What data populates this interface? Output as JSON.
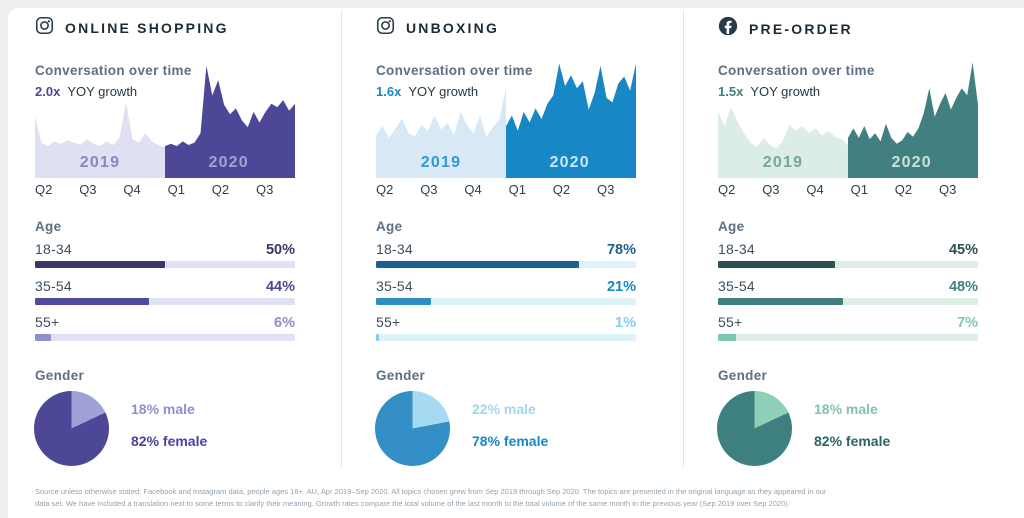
{
  "columns": [
    {
      "title": "ONLINE SHOPPING",
      "platform_icon": "instagram",
      "section_title": "Conversation over time",
      "yoy_label": "YOY growth",
      "accent_color": "#4c4897",
      "age_heading": "Age",
      "age_rows": [
        {
          "label": "18-34",
          "value": "50%"
        },
        {
          "label": "35-54",
          "value": "44%"
        },
        {
          "label": "55+",
          "value": "6%"
        }
      ],
      "gender_heading": "Gender",
      "male_label": "18% male",
      "female_label": "82% female"
    },
    {
      "title": "UNBOXING",
      "platform_icon": "instagram",
      "section_title": "Conversation over time",
      "yoy_label": "YOY growth",
      "accent_color": "#1787c5",
      "age_heading": "Age",
      "age_rows": [
        {
          "label": "18-34",
          "value": "78%"
        },
        {
          "label": "35-54",
          "value": "21%"
        },
        {
          "label": "55+",
          "value": "1%"
        }
      ],
      "gender_heading": "Gender",
      "male_label": "22% male",
      "female_label": "78% female"
    },
    {
      "title": "PRE-ORDER",
      "platform_icon": "facebook",
      "section_title": "Conversation over time",
      "yoy_label": "YOY growth",
      "accent_color": "#417f80",
      "age_heading": "Age",
      "age_rows": [
        {
          "label": "18-34",
          "value": "45%"
        },
        {
          "label": "35-54",
          "value": "48%"
        },
        {
          "label": "55+",
          "value": "7%"
        }
      ],
      "gender_heading": "Gender",
      "male_label": "18% male",
      "female_label": "82% female"
    }
  ],
  "chart_data": [
    {
      "topic": "ONLINE SHOPPING",
      "area": {
        "type": "area",
        "title": "Conversation over time",
        "yoy_growth": "2.0x",
        "x_labels": [
          "Q2",
          "Q3",
          "Q4",
          "Q1",
          "Q2",
          "Q3"
        ],
        "scale": "normalized conversation volume 0-1 (no y-axis shown)",
        "series": [
          {
            "name": "2019",
            "color": "#dfe1f3",
            "label_color": "#8987c6",
            "values": [
              0.52,
              0.3,
              0.27,
              0.31,
              0.29,
              0.32,
              0.3,
              0.28,
              0.33,
              0.29,
              0.27,
              0.31,
              0.28,
              0.34,
              0.64,
              0.33,
              0.3,
              0.38,
              0.31,
              0.28,
              0.26
            ]
          },
          {
            "name": "2020",
            "color": "#4c4897",
            "label_color": "#a3a1d4",
            "values": [
              0.27,
              0.29,
              0.27,
              0.31,
              0.28,
              0.3,
              0.38,
              0.95,
              0.7,
              0.83,
              0.62,
              0.54,
              0.59,
              0.49,
              0.43,
              0.56,
              0.47,
              0.56,
              0.63,
              0.6,
              0.66,
              0.57,
              0.63
            ]
          }
        ]
      },
      "age_bars": {
        "type": "bar",
        "categories": [
          "18-34",
          "35-54",
          "55+"
        ],
        "values": [
          50,
          44,
          6
        ],
        "unit": "%",
        "bar_colors": [
          "#393669",
          "#504c9c",
          "#8f8dcb"
        ],
        "value_colors": [
          "#393669",
          "#4c4897",
          "#8f8dcb"
        ],
        "track_color": "#e0e2f4"
      },
      "gender_pie": {
        "type": "pie",
        "labels": [
          "male",
          "female"
        ],
        "values": [
          18,
          82
        ],
        "colors": [
          "#a0a1d6",
          "#4c4897"
        ],
        "text_colors": [
          "#8d90d0",
          "#4843a0"
        ]
      }
    },
    {
      "topic": "UNBOXING",
      "area": {
        "type": "area",
        "title": "Conversation over time",
        "yoy_growth": "1.6x",
        "x_labels": [
          "Q2",
          "Q3",
          "Q4",
          "Q1",
          "Q2",
          "Q3"
        ],
        "scale": "normalized conversation volume 0-1 (no y-axis shown)",
        "series": [
          {
            "name": "2019",
            "color": "#d8e9f5",
            "label_color": "#2e9ad8",
            "values": [
              0.36,
              0.44,
              0.34,
              0.42,
              0.5,
              0.38,
              0.35,
              0.45,
              0.4,
              0.53,
              0.41,
              0.47,
              0.36,
              0.56,
              0.45,
              0.38,
              0.53,
              0.35,
              0.43,
              0.5,
              0.76
            ]
          },
          {
            "name": "2020",
            "color": "#1787c5",
            "label_color": "#c9e6f6",
            "values": [
              0.44,
              0.53,
              0.4,
              0.56,
              0.47,
              0.59,
              0.5,
              0.63,
              0.7,
              0.97,
              0.78,
              0.87,
              0.76,
              0.82,
              0.58,
              0.72,
              0.95,
              0.68,
              0.64,
              0.8,
              0.86,
              0.74,
              0.97
            ]
          }
        ]
      },
      "age_bars": {
        "type": "bar",
        "categories": [
          "18-34",
          "35-54",
          "55+"
        ],
        "values": [
          78,
          21,
          1
        ],
        "unit": "%",
        "bar_colors": [
          "#1d5f8f",
          "#2e8fc4",
          "#7fd0ee"
        ],
        "value_colors": [
          "#1d5f8f",
          "#1787c5",
          "#7fd0ee"
        ],
        "track_color": "#def2f9"
      },
      "gender_pie": {
        "type": "pie",
        "labels": [
          "male",
          "female"
        ],
        "values": [
          22,
          78
        ],
        "colors": [
          "#a6d9f2",
          "#338fc6"
        ],
        "text_colors": [
          "#a2d6f0",
          "#1787c5"
        ]
      }
    },
    {
      "topic": "PRE-ORDER",
      "area": {
        "type": "area",
        "title": "Conversation over time",
        "yoy_growth": "1.5x",
        "x_labels": [
          "Q2",
          "Q3",
          "Q4",
          "Q1",
          "Q2",
          "Q3"
        ],
        "scale": "normalized conversation volume 0-1 (no y-axis shown)",
        "series": [
          {
            "name": "2019",
            "color": "#dcede7",
            "label_color": "#74a79e",
            "values": [
              0.56,
              0.44,
              0.6,
              0.48,
              0.38,
              0.3,
              0.26,
              0.34,
              0.28,
              0.25,
              0.32,
              0.45,
              0.4,
              0.44,
              0.38,
              0.42,
              0.36,
              0.4,
              0.35,
              0.33,
              0.28
            ]
          },
          {
            "name": "2020",
            "color": "#417f80",
            "label_color": "#cde2dc",
            "values": [
              0.34,
              0.42,
              0.34,
              0.44,
              0.33,
              0.38,
              0.31,
              0.46,
              0.34,
              0.29,
              0.32,
              0.39,
              0.35,
              0.42,
              0.55,
              0.76,
              0.52,
              0.63,
              0.72,
              0.58,
              0.68,
              0.76,
              0.7,
              0.98,
              0.62
            ]
          }
        ]
      },
      "age_bars": {
        "type": "bar",
        "categories": [
          "18-34",
          "35-54",
          "55+"
        ],
        "values": [
          45,
          48,
          7
        ],
        "unit": "%",
        "bar_colors": [
          "#2c5152",
          "#417f7e",
          "#7fc7b1"
        ],
        "value_colors": [
          "#2c5152",
          "#417f7e",
          "#82c8b4"
        ],
        "track_color": "#ddeee6"
      },
      "gender_pie": {
        "type": "pie",
        "labels": [
          "male",
          "female"
        ],
        "values": [
          18,
          82
        ],
        "colors": [
          "#8fcfba",
          "#3e7f80"
        ],
        "text_colors": [
          "#7fc4ae",
          "#2a6465"
        ]
      }
    }
  ],
  "footer": {
    "line1": "Source unless otherwise stated: Facebook and Instagram data, people ages 18+, AU, Apr 2019–Sep 2020. All topics chosen grew from Sep 2019 through Sep 2020. The topics are presented in the original language as they appeared in our",
    "line2": "data set. We have included a translation next to some terms to clarify their meaning. Growth rates compare the total volume of the last month to the total volume of the same month in the previous year (Sep 2019 over Sep 2020)."
  }
}
